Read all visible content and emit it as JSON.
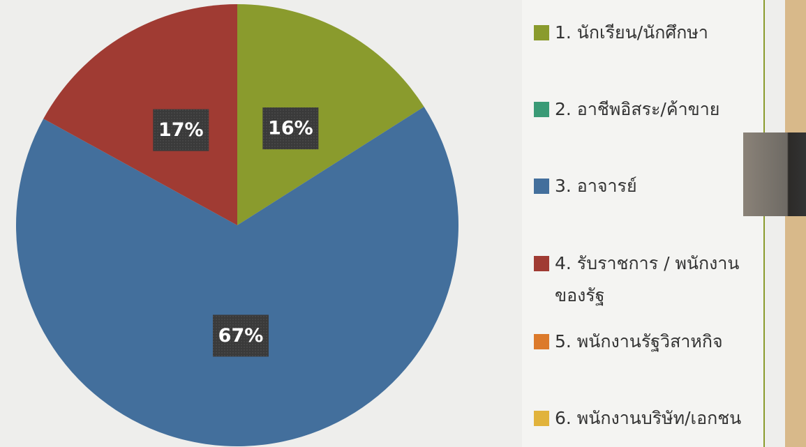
{
  "chart_data": {
    "type": "pie",
    "categories": [
      "1. นักเรียน/นักศึกษา",
      "2. อาชีพอิสระ/ค้าขาย",
      "3. อาจารย์",
      "4. รับราชการ / พนักงานของรัฐ",
      "5. พนักงานรัฐวิสาหกิจ",
      "6. พนักงานบริษัท/เอกชน"
    ],
    "values": [
      16,
      0,
      67,
      17,
      0,
      0
    ],
    "value_labels": [
      "16%",
      null,
      "67%",
      "17%",
      null,
      null
    ],
    "colors": [
      "#8a9b2d",
      "#3a9a76",
      "#436f9c",
      "#a03b33",
      "#dc7a2b",
      "#e1b33c"
    ],
    "legend": "right"
  }
}
